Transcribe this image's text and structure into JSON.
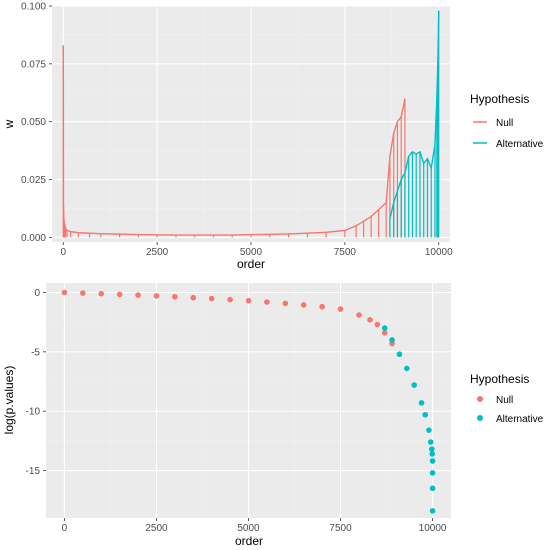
{
  "colors": {
    "null": "#F8766D",
    "alternative": "#00BFC4",
    "panel": "#EBEBEB",
    "grid_major": "#FFFFFF",
    "grid_minor": "#F2F2F2"
  },
  "chart_data": [
    {
      "type": "line",
      "xlabel": "order",
      "ylabel": "w",
      "xlim": [
        -300,
        10300
      ],
      "ylim": [
        -0.002,
        0.1
      ],
      "x_ticks": [
        0,
        2500,
        5000,
        7500,
        10000
      ],
      "x_tick_labels": [
        "0",
        "2500",
        "5000",
        "7500",
        "10000"
      ],
      "y_ticks": [
        0.0,
        0.025,
        0.05,
        0.075,
        0.1
      ],
      "y_tick_labels": [
        "0.000",
        "0.025",
        "0.050",
        "0.075",
        "0.100"
      ],
      "grid": true,
      "legend": {
        "title": "Hypothesis",
        "position": "right",
        "entries": [
          "Null",
          "Alternative"
        ]
      },
      "series": [
        {
          "name": "Null",
          "color": "#F8766D",
          "x": [
            1,
            5,
            15,
            30,
            60,
            100,
            200,
            400,
            700,
            1000,
            1500,
            2000,
            2500,
            3000,
            3500,
            4000,
            4500,
            5000,
            5500,
            6000,
            6500,
            7000,
            7500,
            7800,
            8000,
            8200,
            8400,
            8600,
            8700,
            8800,
            8900,
            9000,
            9100
          ],
          "y": [
            0.083,
            0.015,
            0.008,
            0.006,
            0.004,
            0.003,
            0.0025,
            0.002,
            0.0018,
            0.0016,
            0.0014,
            0.0012,
            0.0011,
            0.001,
            0.001,
            0.001,
            0.001,
            0.0012,
            0.0013,
            0.0015,
            0.0018,
            0.0022,
            0.003,
            0.005,
            0.007,
            0.009,
            0.012,
            0.015,
            0.035,
            0.045,
            0.05,
            0.052,
            0.06
          ]
        },
        {
          "name": "Alternative",
          "color": "#00BFC4",
          "x": [
            8700,
            8800,
            8900,
            9000,
            9100,
            9200,
            9300,
            9400,
            9500,
            9600,
            9700,
            9800,
            9900,
            9950,
            9980,
            10000
          ],
          "y": [
            0.008,
            0.015,
            0.02,
            0.025,
            0.028,
            0.035,
            0.037,
            0.036,
            0.037,
            0.032,
            0.034,
            0.03,
            0.04,
            0.06,
            0.078,
            0.098
          ]
        }
      ]
    },
    {
      "type": "scatter",
      "xlabel": "order",
      "ylabel": "log(p.values)",
      "xlim": [
        -500,
        10500
      ],
      "ylim": [
        -19,
        0.8
      ],
      "x_ticks": [
        0,
        2500,
        5000,
        7500,
        10000
      ],
      "x_tick_labels": [
        "0",
        "2500",
        "5000",
        "7500",
        "10000"
      ],
      "y_ticks": [
        0,
        -5,
        -10,
        -15
      ],
      "y_tick_labels": [
        "0",
        "-5",
        "-10",
        "-15"
      ],
      "grid": true,
      "legend": {
        "title": "Hypothesis",
        "position": "right",
        "entries": [
          "Null",
          "Alternative"
        ]
      },
      "series": [
        {
          "name": "Null",
          "color": "#F8766D",
          "x": [
            0,
            500,
            1000,
            1500,
            2000,
            2500,
            3000,
            3500,
            4000,
            4500,
            5000,
            5500,
            6000,
            6500,
            7000,
            7500,
            8000,
            8300,
            8500,
            8700,
            8900
          ],
          "y": [
            0.0,
            -0.05,
            -0.1,
            -0.16,
            -0.22,
            -0.29,
            -0.36,
            -0.44,
            -0.51,
            -0.6,
            -0.69,
            -0.8,
            -0.92,
            -1.05,
            -1.2,
            -1.4,
            -1.9,
            -2.3,
            -2.7,
            -3.4,
            -4.3
          ]
        },
        {
          "name": "Alternative",
          "color": "#00BFC4",
          "x": [
            8700,
            8900,
            9100,
            9300,
            9500,
            9700,
            9800,
            9900,
            9950,
            9980,
            9990,
            10000,
            10000,
            10000,
            10000
          ],
          "y": [
            -3.0,
            -4.0,
            -5.2,
            -6.4,
            -7.8,
            -9.3,
            -10.3,
            -11.6,
            -12.6,
            -13.2,
            -13.6,
            -14.2,
            -15.2,
            -16.5,
            -18.4
          ]
        }
      ]
    }
  ]
}
